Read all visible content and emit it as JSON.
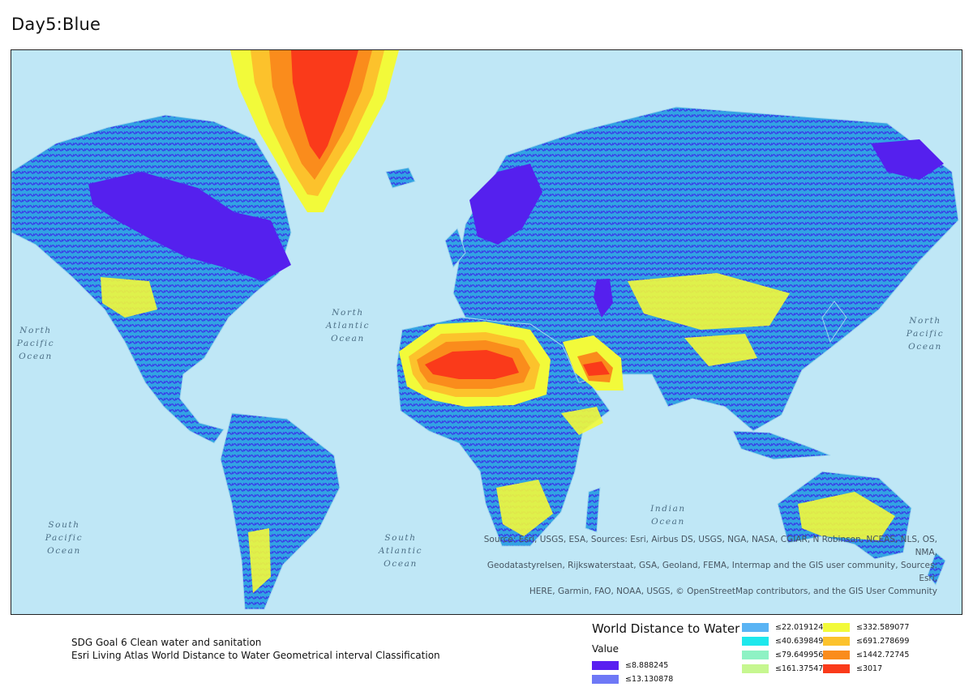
{
  "title": "Day5:Blue",
  "map": {
    "ocean_labels": [
      {
        "id": "north-pacific-ocean",
        "lines": [
          "North",
          "Pacific",
          "Ocean"
        ]
      },
      {
        "id": "north-atlantic-ocean",
        "lines": [
          "North",
          "Atlantic",
          "Ocean"
        ]
      },
      {
        "id": "north-pacific-ocean-east",
        "lines": [
          "North",
          "Pacific",
          "Ocean"
        ]
      },
      {
        "id": "indian-ocean",
        "lines": [
          "Indian",
          "Ocean"
        ]
      },
      {
        "id": "south-atlantic-ocean",
        "lines": [
          "South",
          "Atlantic",
          "Ocean"
        ]
      },
      {
        "id": "south-pacific-ocean",
        "lines": [
          "South",
          "Pacific",
          "Ocean"
        ]
      }
    ],
    "attribution": [
      "Source: Esri, USGS, ESA, Sources: Esri, Airbus DS, USGS, NGA, NASA, CGIAR, N Robinson, NCEAS, NLS, OS, NMA,",
      "Geodatastyrelsen, Rijkswaterstaat, GSA, Geoland, FEMA, Intermap and the GIS user community, Sources: Esri,",
      "HERE, Garmin, FAO, NOAA, USGS, © OpenStreetMap contributors, and the GIS User Community"
    ]
  },
  "footer": {
    "line1": "SDG Goal 6 Clean water and sanitation",
    "line2": "Esri Living Atlas World Distance to Water Geometrical interval Classification"
  },
  "legend": {
    "title": "World Distance to Water",
    "subtitle": "Value",
    "items": [
      {
        "label": "≤8.888245",
        "color": "#5a20f0"
      },
      {
        "label": "≤13.130878",
        "color": "#6e78f6"
      },
      {
        "label": "≤22.019124",
        "color": "#5ab4f4"
      },
      {
        "label": "≤40.639849",
        "color": "#1ee8ec"
      },
      {
        "label": "≤79.649956",
        "color": "#8ef2c4"
      },
      {
        "label": "≤161.375478",
        "color": "#c6f790"
      },
      {
        "label": "≤332.589077",
        "color": "#f2fa3a"
      },
      {
        "label": "≤691.278699",
        "color": "#fcc22c"
      },
      {
        "label": "≤1442.72745",
        "color": "#fa8c1c"
      },
      {
        "label": "≤3017",
        "color": "#fa3a1a"
      }
    ]
  }
}
